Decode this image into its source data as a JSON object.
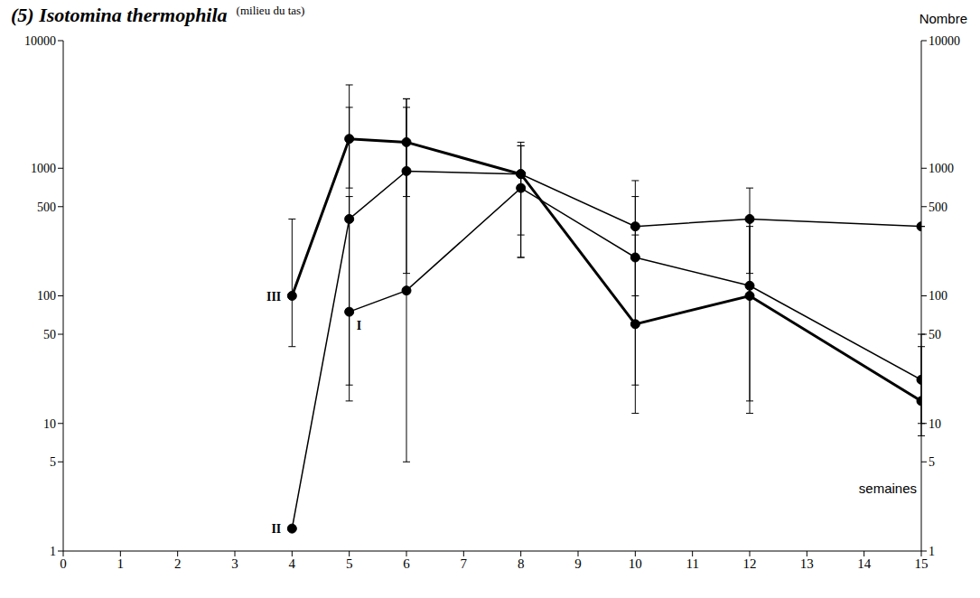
{
  "chart_data": {
    "type": "line",
    "title": "(5) Isotomina thermophila",
    "subtitle": "(milieu du tas)",
    "y_label": "Nombre",
    "x_label": "semaines",
    "log": "y",
    "grid": false,
    "xlim": [
      0,
      15
    ],
    "xticks": [
      0,
      1,
      2,
      3,
      4,
      5,
      6,
      7,
      8,
      9,
      10,
      11,
      12,
      13,
      14,
      15
    ],
    "ylim": [
      1,
      10000
    ],
    "yticks": [
      1,
      5,
      10,
      50,
      100,
      500,
      1000,
      10000
    ],
    "y2lim": [
      1,
      10000
    ],
    "y2ticks": [
      1,
      5,
      10,
      50,
      100,
      500,
      1000,
      10000
    ],
    "series": [
      {
        "name": "I",
        "color": "#000000",
        "marker": "o",
        "line_style": "solid",
        "x": [
          5,
          6,
          8,
          10,
          12,
          15
        ],
        "values": [
          75,
          110,
          700,
          200,
          120,
          22
        ],
        "error_low": [
          15,
          5,
          200,
          20,
          15,
          10
        ],
        "error_high": [
          600,
          3000,
          1500,
          600,
          400,
          50
        ]
      },
      {
        "name": "II",
        "color": "#000000",
        "marker": "o",
        "line_style": "solid",
        "x": [
          4,
          5,
          6,
          8,
          10,
          12,
          15
        ],
        "values": [
          1.5,
          400,
          950,
          900,
          350,
          400,
          350
        ],
        "error_low": [
          null,
          20,
          150,
          200,
          100,
          150,
          null
        ],
        "error_high": [
          null,
          3000,
          3500,
          1500,
          800,
          700,
          null
        ]
      },
      {
        "name": "III",
        "color": "#000000",
        "marker": "o",
        "line_style": "solid",
        "x": [
          4,
          5,
          6,
          8,
          10,
          12,
          15
        ],
        "values": [
          100,
          1700,
          1600,
          900,
          60,
          100,
          15
        ],
        "error_low": [
          40,
          700,
          600,
          300,
          12,
          12,
          8
        ],
        "error_high": [
          400,
          4500,
          3500,
          1600,
          300,
          350,
          40
        ]
      }
    ]
  }
}
